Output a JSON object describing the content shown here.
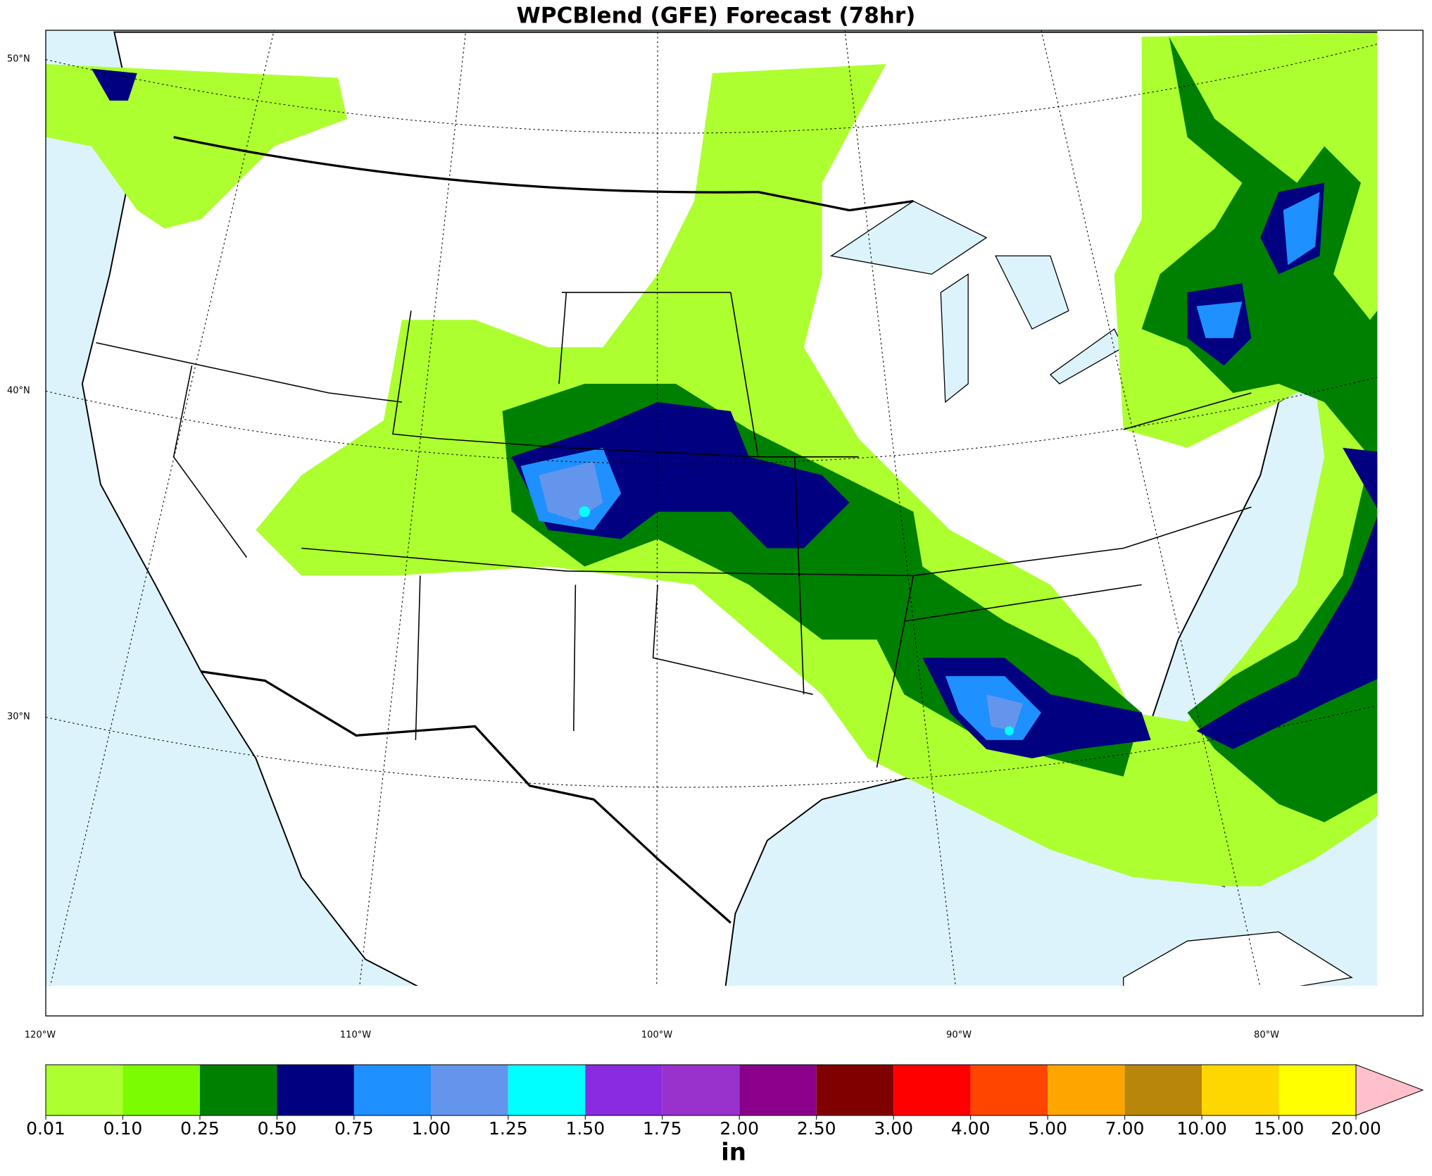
{
  "header": {
    "title": "WPCBlend (GFE) Forecast (78hr)"
  },
  "map": {
    "lat_labels": [
      "50°N",
      "40°N",
      "30°N"
    ],
    "lon_labels": [
      "120°W",
      "110°W",
      "100°W",
      "90°W",
      "80°W"
    ]
  },
  "colorbar": {
    "levels": [
      "0.01",
      "0.10",
      "0.25",
      "0.50",
      "0.75",
      "1.00",
      "1.25",
      "1.50",
      "1.75",
      "2.00",
      "2.50",
      "3.00",
      "4.00",
      "5.00",
      "7.00",
      "10.00",
      "15.00",
      "20.00"
    ],
    "colors": [
      "#adff2f",
      "#7cfc00",
      "#008000",
      "#000080",
      "#1e90ff",
      "#6495ed",
      "#00ffff",
      "#8a2be2",
      "#9932cc",
      "#8b008b",
      "#800000",
      "#ff0000",
      "#ff4500",
      "#ffa500",
      "#b8860b",
      "#ffd700",
      "#ffff00"
    ],
    "extend_color": "#ffc0cb",
    "unit": "in"
  }
}
